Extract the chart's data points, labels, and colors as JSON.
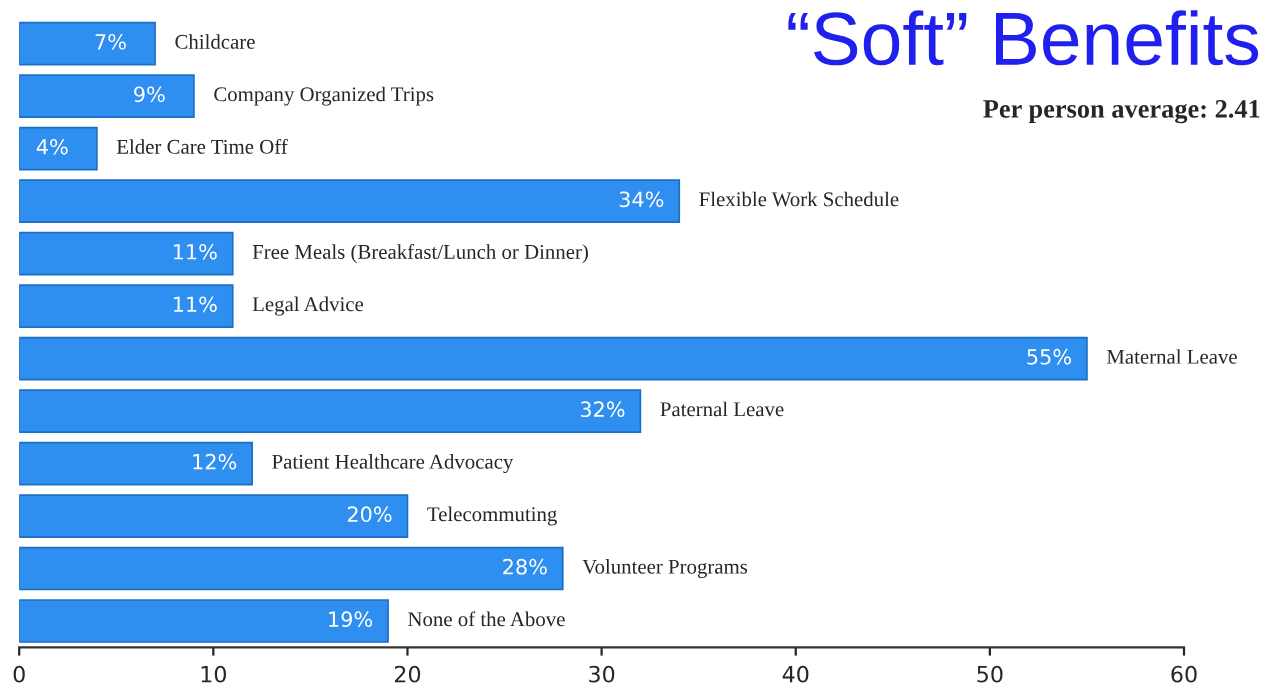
{
  "chart_data": {
    "type": "bar",
    "orientation": "horizontal",
    "title": "“Soft” Benefits",
    "subtitle": "Per person average: 2.41",
    "categories": [
      "Childcare",
      "Company Organized Trips",
      "Elder Care Time Off",
      "Flexible Work Schedule",
      "Free Meals (Breakfast/Lunch or Dinner)",
      "Legal Advice",
      "Maternal Leave",
      "Paternal Leave",
      "Patient Healthcare Advocacy",
      "Telecommuting",
      "Volunteer Programs",
      "None of the Above"
    ],
    "values": [
      7,
      9,
      4,
      34,
      11,
      11,
      55,
      32,
      12,
      20,
      28,
      19
    ],
    "value_labels": [
      "7%",
      "9%",
      "4%",
      "34%",
      "11%",
      "11%",
      "55%",
      "32%",
      "12%",
      "20%",
      "28%",
      "19%"
    ],
    "color": "#2e8ff0",
    "xlim": [
      0,
      60
    ],
    "xticks": [
      0,
      10,
      20,
      30,
      40,
      50,
      60
    ],
    "tick_labels": "x",
    "grid": false,
    "legend": false
  }
}
